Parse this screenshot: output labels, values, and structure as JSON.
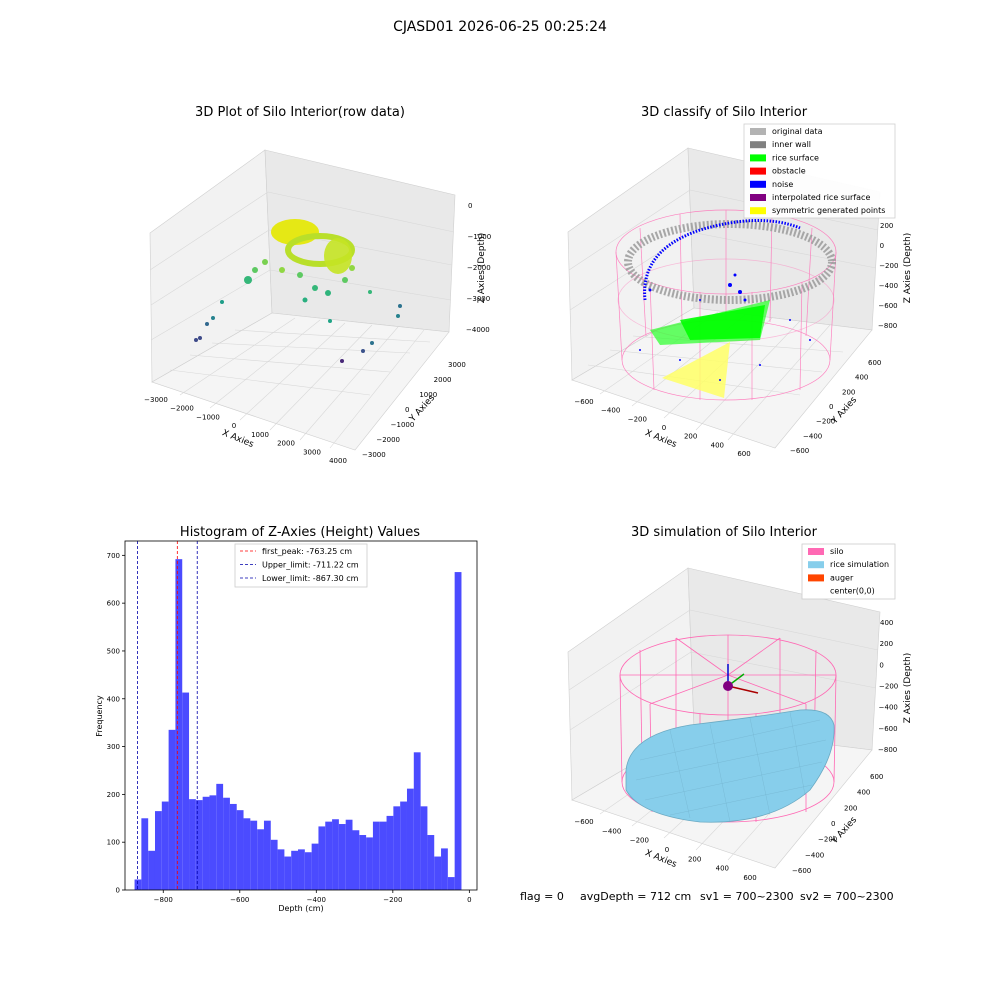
{
  "suptitle": "CJASD01 2026-06-25 00:25:24",
  "status_line": {
    "flag": "flag = 0",
    "avg_depth": "avgDepth = 712 cm",
    "sv1": "sv1 = 700~2300",
    "sv2": "sv2 = 700~2300"
  },
  "colors": {
    "histogram_bar": "#4b4bff",
    "peak_line": "#ff0000",
    "limit_line": "#0000aa",
    "silo_wire": "#ff69b4",
    "rice_simulation": "#87ceeb",
    "auger": "#ff4500",
    "grey_points": "#a9a9a9",
    "rice_surface": "#00ff00",
    "noise": "#0000ff",
    "symmetric": "#ffff00"
  },
  "chart_data": [
    {
      "type": "scatter",
      "projection": "3d",
      "title": "3D Plot of Silo Interior(row data)",
      "xlabel": "X Axies",
      "ylabel": "Y Axies",
      "zlabel": "Z Axies (Depth)",
      "x_ticks": [
        "−3000",
        "−2000",
        "−1000",
        "0",
        "1000",
        "2000",
        "3000",
        "4000"
      ],
      "y_ticks": [
        "−3000",
        "−2000",
        "−1000",
        "0",
        "1000",
        "2000",
        "3000"
      ],
      "z_ticks": [
        "0",
        "−1000",
        "−2000",
        "−3000",
        "−4000"
      ],
      "grid": true
    },
    {
      "type": "scatter",
      "projection": "3d",
      "title": "3D classify of Silo Interior",
      "xlabel": "X Axies",
      "ylabel": "Y Axies",
      "zlabel": "Z Axies (Depth)",
      "x_ticks": [
        "−600",
        "−400",
        "−200",
        "0",
        "200",
        "400",
        "600"
      ],
      "y_ticks": [
        "−600",
        "−400",
        "−200",
        "0",
        "200",
        "400",
        "600"
      ],
      "z_ticks": [
        "200",
        "0",
        "−200",
        "−400",
        "−600",
        "−800"
      ],
      "legend_placement": "top-right",
      "legend": [
        {
          "label": "original data",
          "color": "#b3b3b3"
        },
        {
          "label": "inner wall",
          "color": "#808080"
        },
        {
          "label": "rice surface",
          "color": "#00ff00"
        },
        {
          "label": "obstacle",
          "color": "#ff0000"
        },
        {
          "label": "noise",
          "color": "#0000ff"
        },
        {
          "label": "interpolated rice surface",
          "color": "#800080"
        },
        {
          "label": "symmetric generated points",
          "color": "#ffff00"
        }
      ],
      "grid": true
    },
    {
      "type": "bar",
      "title": "Histogram of Z-Axies (Height) Values",
      "xlabel": "Depth (cm)",
      "ylabel": "Frequency",
      "xlim": [
        -900,
        20
      ],
      "ylim": [
        0,
        730
      ],
      "x_ticks": [
        {
          "value": -800,
          "label": "−800"
        },
        {
          "value": -600,
          "label": "−600"
        },
        {
          "value": -400,
          "label": "−400"
        },
        {
          "value": -200,
          "label": "−200"
        },
        {
          "value": 0,
          "label": "0"
        }
      ],
      "y_ticks": [
        0,
        100,
        200,
        300,
        400,
        500,
        600,
        700
      ],
      "bin_start": -875,
      "bin_width": 17.8,
      "values": [
        22,
        150,
        82,
        165,
        185,
        335,
        692,
        413,
        190,
        188,
        195,
        198,
        222,
        193,
        180,
        167,
        150,
        145,
        127,
        145,
        105,
        85,
        70,
        82,
        85,
        79,
        97,
        133,
        143,
        148,
        138,
        147,
        125,
        115,
        110,
        143,
        143,
        155,
        175,
        185,
        212,
        288,
        175,
        115,
        70,
        87,
        27,
        665
      ],
      "reference_lines": [
        {
          "value": -763.25,
          "kind": "peak"
        },
        {
          "value": -711.22,
          "kind": "upper"
        },
        {
          "value": -867.3,
          "kind": "lower"
        }
      ],
      "legend_placement": "top-center",
      "legend": [
        {
          "label": "first_peak: -763.25 cm",
          "color": "#ff0000"
        },
        {
          "label": "Upper_limit: -711.22 cm",
          "color": "#0000aa"
        },
        {
          "label": "Lower_limit: -867.30 cm",
          "color": "#0000aa"
        }
      ],
      "grid": false
    },
    {
      "type": "surface",
      "projection": "3d",
      "title": "3D simulation of Silo Interior",
      "xlabel": "X Axies",
      "ylabel": "Y Axies",
      "zlabel": "Z Axies (Depth)",
      "x_ticks": [
        "−600",
        "−400",
        "−200",
        "0",
        "200",
        "400",
        "600"
      ],
      "y_ticks": [
        "−600",
        "−400",
        "−200",
        "0",
        "200",
        "400",
        "600"
      ],
      "z_ticks": [
        "400",
        "200",
        "0",
        "−200",
        "−400",
        "−600",
        "−800"
      ],
      "legend_placement": "top-right",
      "legend": [
        {
          "label": "silo",
          "color": "#ff69b4"
        },
        {
          "label": "rice simulation",
          "color": "#87ceeb"
        },
        {
          "label": "auger",
          "color": "#ff4500"
        },
        {
          "label": "center(0,0)",
          "color": ""
        }
      ],
      "grid": true
    }
  ]
}
